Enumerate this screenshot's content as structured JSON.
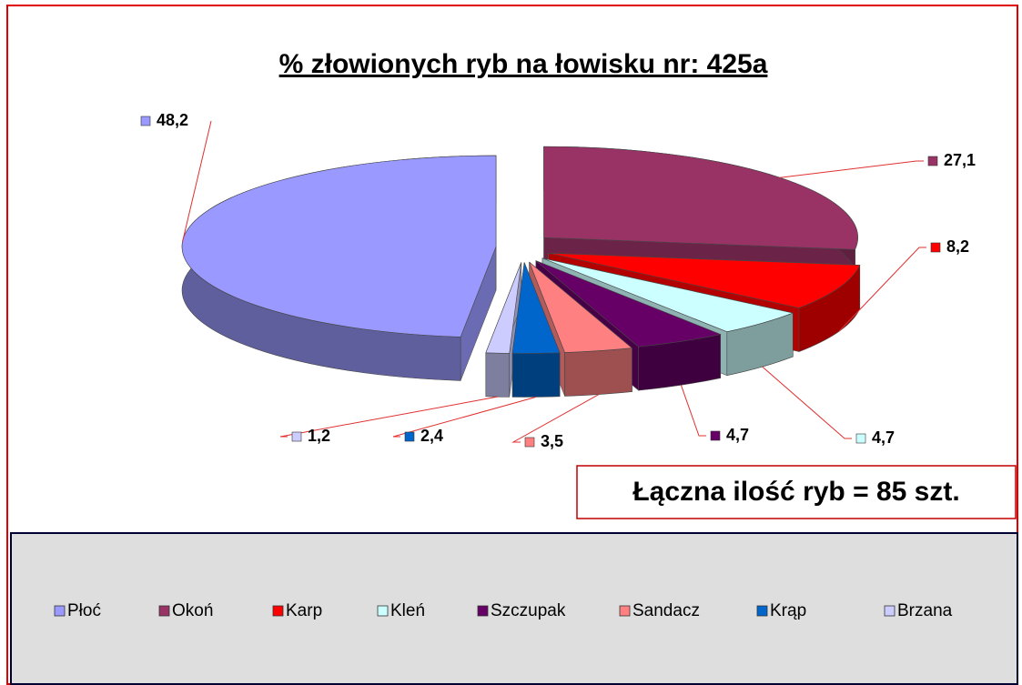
{
  "chart_data": {
    "type": "pie",
    "title": "% złowionych ryb na łowisku nr: 425a",
    "categories": [
      "Płoć",
      "Okoń",
      "Karp",
      "Kleń",
      "Szczupak",
      "Sandacz",
      "Krąp",
      "Brzana"
    ],
    "values": [
      48.2,
      27.1,
      8.2,
      4.7,
      4.7,
      3.5,
      2.4,
      1.2
    ],
    "value_labels": [
      "48,2",
      "27,1",
      "8,2",
      "4,7",
      "4,7",
      "3,5",
      "2,4",
      "1,2"
    ],
    "colors": [
      "#9999ff",
      "#993366",
      "#ff0000",
      "#ccffff",
      "#660066",
      "#ff8080",
      "#0066cc",
      "#ccccff"
    ],
    "annotation": "Łączna ilość ryb = 85 szt.",
    "legend": "bottom"
  }
}
